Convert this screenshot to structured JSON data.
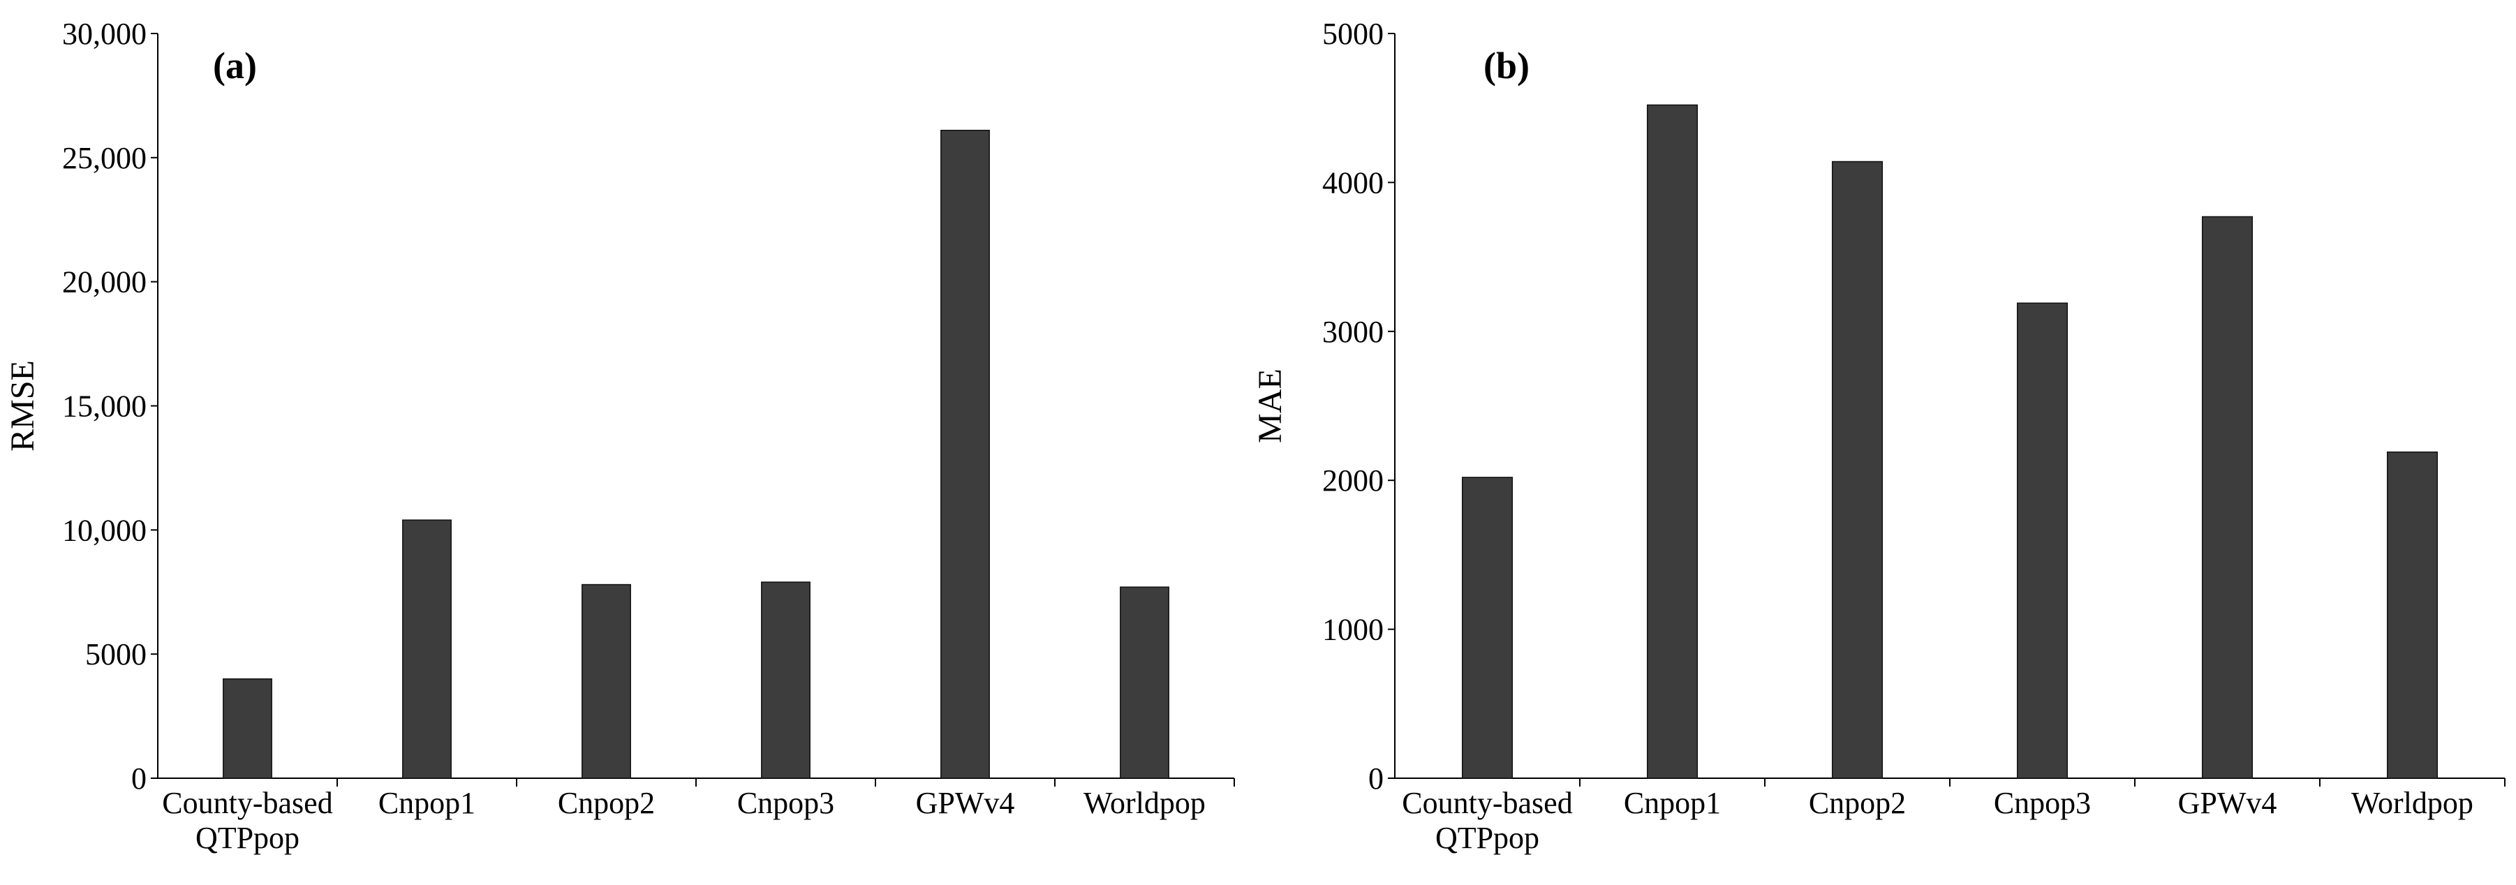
{
  "chart_data": [
    {
      "type": "bar",
      "panel_label": "(a)",
      "title": "",
      "xlabel": "",
      "ylabel": "RMSE",
      "categories": [
        [
          "County-based",
          "QTPpop"
        ],
        [
          "Cnpop1"
        ],
        [
          "Cnpop2"
        ],
        [
          "Cnpop3"
        ],
        [
          "GPWv4"
        ],
        [
          "Worldpop"
        ]
      ],
      "values": [
        4000,
        10400,
        7800,
        7900,
        26100,
        7700
      ],
      "ylim": [
        0,
        30000
      ],
      "yticks": [
        0,
        5000,
        10000,
        15000,
        20000,
        25000,
        30000
      ],
      "ytick_labels": [
        "0",
        "5000",
        "10,000",
        "15,000",
        "20,000",
        "25,000",
        "30,000"
      ],
      "bar_color": "#3d3d3d",
      "grid": false
    },
    {
      "type": "bar",
      "panel_label": "(b)",
      "title": "",
      "xlabel": "",
      "ylabel": "MAE",
      "categories": [
        [
          "County-based",
          "QTPpop"
        ],
        [
          "Cnpop1"
        ],
        [
          "Cnpop2"
        ],
        [
          "Cnpop3"
        ],
        [
          "GPWv4"
        ],
        [
          "Worldpop"
        ]
      ],
      "values": [
        2020,
        4520,
        4140,
        3190,
        3770,
        2190
      ],
      "ylim": [
        0,
        5000
      ],
      "yticks": [
        0,
        1000,
        2000,
        3000,
        4000,
        5000
      ],
      "ytick_labels": [
        "0",
        "1000",
        "2000",
        "3000",
        "4000",
        "5000"
      ],
      "bar_color": "#3d3d3d",
      "grid": false
    }
  ]
}
